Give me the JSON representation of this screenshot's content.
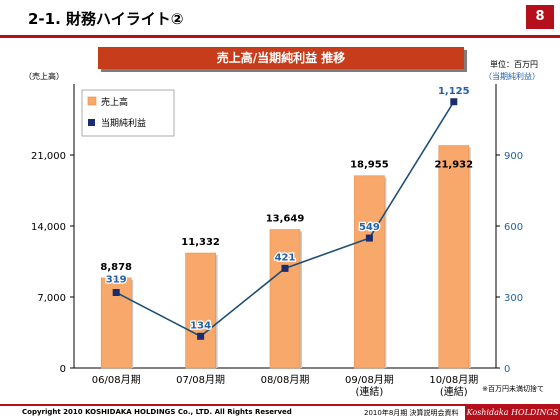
{
  "header": {
    "title": "2-1. 財務ハイライト②",
    "page_number": "8"
  },
  "banner": {
    "label": "売上高/当期純利益 推移"
  },
  "unit_label": "単位：百万円",
  "y2_title": "（当期純利益）",
  "y1_title": "（売上高）",
  "footnote": "※百万円未満切捨て",
  "footer": {
    "copyright": "Copyright 2010 KOSHIDAKA HOLDINGS Co., LTD. All Rights Reserved",
    "document": "2010年8月期 決算説明会資料",
    "brand": "Koshidaka HOLDINGS"
  },
  "colors": {
    "accent": "#b50f1c",
    "bar": "#f7a86a",
    "line": "#1f4e79",
    "marker": "#1b2d6e",
    "axis_right": "#2461a6"
  },
  "chart_data": {
    "type": "bar",
    "categories": [
      "06/08月期",
      "07/08月期",
      "08/08月期",
      "09/08月期\n(連結)",
      "10/08月期\n(連結)"
    ],
    "category_lines": [
      [
        "06/08月期"
      ],
      [
        "07/08月期"
      ],
      [
        "08/08月期"
      ],
      [
        "09/08月期",
        "(連結)"
      ],
      [
        "10/08月期",
        "(連結)"
      ]
    ],
    "series": [
      {
        "name": "売上高",
        "type": "bar",
        "axis": "left",
        "values": [
          8878,
          11332,
          13649,
          18955,
          21932
        ]
      },
      {
        "name": "当期純利益",
        "type": "line",
        "axis": "right",
        "values": [
          319,
          134,
          421,
          549,
          1125
        ]
      }
    ],
    "bar_labels": [
      "8,878",
      "11,332",
      "13,649",
      "18,955",
      "21,932"
    ],
    "line_labels": [
      "319",
      "134",
      "421",
      "549",
      "1,125"
    ],
    "ylim": [
      0,
      28000
    ],
    "y2lim": [
      0,
      1200
    ],
    "yticks": [
      0,
      7000,
      14000,
      21000
    ],
    "ytick_labels": [
      "0",
      "7,000",
      "14,000",
      "21,000"
    ],
    "y2ticks": [
      0,
      300,
      600,
      900
    ],
    "y2tick_labels": [
      "0",
      "300",
      "600",
      "900"
    ],
    "legend_position": "top-left",
    "grid": false
  }
}
